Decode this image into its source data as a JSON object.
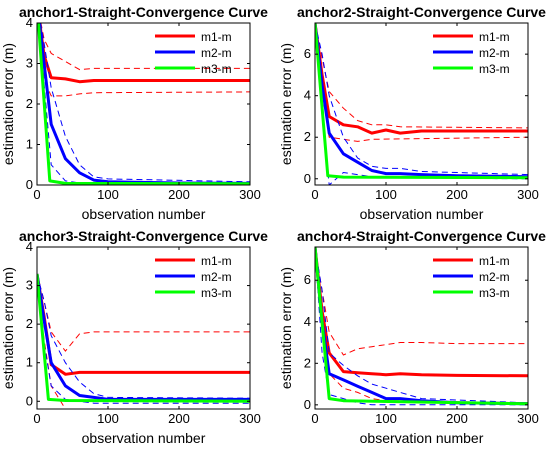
{
  "chart_data": [
    {
      "type": "line",
      "title": "anchor1-Straight-Convergence Curve",
      "xlabel": "observation number",
      "ylabel": "estimation error (m)",
      "xlim": [
        0,
        300
      ],
      "ylim": [
        0,
        4
      ],
      "xticks": [
        0,
        100,
        200,
        300
      ],
      "yticks": [
        0,
        1,
        2,
        3,
        4
      ],
      "legend_position": "top-right",
      "series": [
        {
          "name": "m1-m",
          "color": "#ff0000",
          "x": [
            0,
            10,
            20,
            40,
            60,
            80,
            100,
            300
          ],
          "y": [
            4.5,
            3.2,
            2.65,
            2.62,
            2.55,
            2.58,
            2.58,
            2.58
          ],
          "band_upper_x": [
            0,
            10,
            20,
            40,
            60,
            80,
            300
          ],
          "band_upper_y": [
            4.5,
            3.6,
            3.25,
            3.05,
            2.85,
            2.88,
            2.88
          ],
          "band_lower_x": [
            0,
            10,
            20,
            40,
            60,
            80,
            300
          ],
          "band_lower_y": [
            4.5,
            2.6,
            2.2,
            2.2,
            2.25,
            2.28,
            2.3
          ]
        },
        {
          "name": "m2-m",
          "color": "#0000ff",
          "x": [
            0,
            10,
            20,
            40,
            60,
            80,
            100,
            200,
            300
          ],
          "y": [
            4.5,
            3.0,
            1.5,
            0.65,
            0.3,
            0.12,
            0.08,
            0.05,
            0.04
          ],
          "band_upper_x": [
            0,
            10,
            20,
            40,
            60,
            80,
            100,
            300
          ],
          "band_upper_y": [
            4.5,
            3.5,
            2.4,
            1.2,
            0.5,
            0.2,
            0.15,
            0.08
          ],
          "band_lower_x": [
            0,
            10,
            20,
            40,
            60,
            80,
            300
          ],
          "band_lower_y": [
            4.5,
            2.5,
            0.5,
            0.1,
            0.05,
            0.02,
            0.02
          ]
        },
        {
          "name": "m3-m",
          "color": "#00ff00",
          "x": [
            0,
            18,
            40,
            300
          ],
          "y": [
            4.5,
            0.1,
            0.04,
            0.03
          ]
        }
      ]
    },
    {
      "type": "line",
      "title": "anchor2-Straight-Convergence Curve",
      "xlabel": "observation number",
      "ylabel": "estimation error (m)",
      "xlim": [
        0,
        300
      ],
      "ylim": [
        -0.3,
        7.5
      ],
      "xticks": [
        0,
        100,
        200,
        300
      ],
      "yticks": [
        0,
        2,
        4,
        6
      ],
      "legend_position": "top-right",
      "series": [
        {
          "name": "m1-m",
          "color": "#ff0000",
          "x": [
            0,
            10,
            20,
            40,
            60,
            80,
            100,
            120,
            150,
            200,
            300
          ],
          "y": [
            7.5,
            5.0,
            3.0,
            2.6,
            2.5,
            2.2,
            2.35,
            2.2,
            2.3,
            2.3,
            2.3
          ],
          "band_upper_x": [
            0,
            10,
            20,
            40,
            60,
            80,
            100,
            120,
            300
          ],
          "band_upper_y": [
            7.5,
            5.8,
            4.2,
            3.4,
            2.8,
            2.6,
            2.6,
            2.5,
            2.45
          ],
          "band_lower_x": [
            0,
            10,
            20,
            40,
            60,
            80,
            300
          ],
          "band_lower_y": [
            7.5,
            4.2,
            2.0,
            1.9,
            1.8,
            1.9,
            2.0
          ]
        },
        {
          "name": "m2-m",
          "color": "#0000ff",
          "x": [
            0,
            10,
            20,
            40,
            60,
            80,
            100,
            120,
            150,
            200,
            300
          ],
          "y": [
            7.5,
            4.5,
            2.2,
            1.2,
            0.8,
            0.4,
            0.25,
            0.25,
            0.2,
            0.15,
            0.1
          ],
          "band_upper_x": [
            0,
            10,
            20,
            40,
            60,
            80,
            100,
            120,
            150,
            300
          ],
          "band_upper_y": [
            7.5,
            6.0,
            4.0,
            2.0,
            1.0,
            0.6,
            0.5,
            0.5,
            0.35,
            0.2
          ],
          "band_lower_x": [
            0,
            10,
            20,
            40,
            60,
            80,
            100,
            300
          ],
          "band_lower_y": [
            7.5,
            3.0,
            -0.3,
            0.3,
            0.2,
            0.1,
            0.05,
            0.0
          ]
        },
        {
          "name": "m3-m",
          "color": "#00ff00",
          "x": [
            0,
            18,
            40,
            300
          ],
          "y": [
            7.5,
            0.15,
            0.08,
            0.05
          ]
        }
      ]
    },
    {
      "type": "line",
      "title": "anchor3-Straight-Convergence Curve",
      "xlabel": "observation number",
      "ylabel": "estimation error (m)",
      "xlim": [
        0,
        300
      ],
      "ylim": [
        -0.2,
        4
      ],
      "xticks": [
        0,
        100,
        200,
        300
      ],
      "yticks": [
        0,
        1,
        2,
        3,
        4
      ],
      "legend_position": "top-right",
      "series": [
        {
          "name": "m1-m",
          "color": "#ff0000",
          "x": [
            0,
            10,
            20,
            40,
            60,
            80,
            300
          ],
          "y": [
            3.3,
            2.2,
            0.95,
            0.7,
            0.75,
            0.75,
            0.75
          ],
          "band_upper_x": [
            0,
            10,
            20,
            40,
            60,
            80,
            300
          ],
          "band_upper_y": [
            3.3,
            2.6,
            1.8,
            1.3,
            1.75,
            1.8,
            1.8
          ],
          "band_lower_x": [
            0,
            10,
            20,
            40,
            60,
            80,
            300
          ],
          "band_lower_y": [
            3.3,
            1.6,
            0.4,
            -0.2,
            -0.3,
            -0.3,
            -0.3
          ]
        },
        {
          "name": "m2-m",
          "color": "#0000ff",
          "x": [
            0,
            10,
            20,
            40,
            60,
            80,
            100,
            300
          ],
          "y": [
            3.3,
            2.1,
            1.0,
            0.4,
            0.15,
            0.1,
            0.05,
            0.05
          ],
          "band_upper_x": [
            0,
            10,
            20,
            40,
            60,
            80,
            100,
            300
          ],
          "band_upper_y": [
            3.3,
            2.6,
            1.7,
            1.0,
            0.5,
            0.2,
            0.1,
            0.08
          ],
          "band_lower_x": [
            0,
            10,
            20,
            40,
            60,
            80,
            300
          ],
          "band_lower_y": [
            3.3,
            1.5,
            0.4,
            0.05,
            0.0,
            -0.05,
            -0.05
          ]
        },
        {
          "name": "m3-m",
          "color": "#00ff00",
          "x": [
            0,
            16,
            40,
            300
          ],
          "y": [
            3.3,
            0.05,
            0.02,
            0.0
          ]
        }
      ]
    },
    {
      "type": "line",
      "title": "anchor4-Straight-Convergence Curve",
      "xlabel": "observation number",
      "ylabel": "estimation error (m)",
      "xlim": [
        0,
        300
      ],
      "ylim": [
        -0.2,
        7.6
      ],
      "xticks": [
        0,
        100,
        200,
        300
      ],
      "yticks": [
        0,
        2,
        4,
        6
      ],
      "legend_position": "top-right",
      "series": [
        {
          "name": "m1-m",
          "color": "#ff0000",
          "x": [
            0,
            10,
            20,
            40,
            60,
            80,
            100,
            120,
            150,
            200,
            300
          ],
          "y": [
            7.6,
            4.5,
            2.5,
            1.6,
            1.55,
            1.5,
            1.45,
            1.5,
            1.45,
            1.42,
            1.4
          ],
          "band_upper_x": [
            0,
            10,
            20,
            40,
            60,
            80,
            100,
            120,
            150,
            200,
            300
          ],
          "band_upper_y": [
            7.6,
            5.5,
            3.5,
            2.4,
            2.7,
            2.8,
            2.9,
            3.0,
            3.0,
            2.95,
            2.95
          ],
          "band_lower_x": [
            0,
            10,
            20,
            40,
            60,
            80,
            100,
            300
          ],
          "band_lower_y": [
            7.6,
            3.5,
            1.5,
            0.8,
            0.6,
            0.3,
            0.2,
            0.1
          ]
        },
        {
          "name": "m2-m",
          "color": "#0000ff",
          "x": [
            0,
            10,
            20,
            40,
            60,
            80,
            100,
            120,
            150,
            200,
            300
          ],
          "y": [
            7.6,
            4.0,
            1.5,
            1.2,
            0.9,
            0.6,
            0.3,
            0.3,
            0.2,
            0.1,
            0.05
          ],
          "band_upper_x": [
            0,
            10,
            20,
            40,
            60,
            80,
            100,
            120,
            150,
            300
          ],
          "band_upper_y": [
            7.6,
            5.5,
            2.5,
            1.9,
            1.4,
            1.0,
            0.8,
            0.6,
            0.3,
            0.1
          ],
          "band_lower_x": [
            0,
            10,
            20,
            40,
            60,
            80,
            300
          ],
          "band_lower_y": [
            7.6,
            2.5,
            0.5,
            0.3,
            0.1,
            0.0,
            0.0
          ]
        },
        {
          "name": "m3-m",
          "color": "#00ff00",
          "x": [
            0,
            20,
            40,
            300
          ],
          "y": [
            7.6,
            0.3,
            0.2,
            0.05
          ]
        }
      ]
    }
  ]
}
